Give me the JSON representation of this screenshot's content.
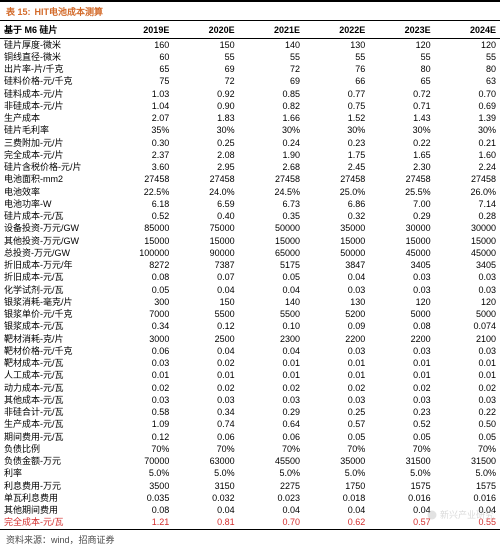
{
  "title_label": "表 15:",
  "title_text": "HIT电池成本测算",
  "header_first": "基于 M6 硅片",
  "years": [
    "2019E",
    "2020E",
    "2021E",
    "2022E",
    "2023E",
    "2024E"
  ],
  "rows": [
    {
      "label": "硅片厚度-微米",
      "cells": [
        "160",
        "150",
        "140",
        "130",
        "120",
        "120"
      ]
    },
    {
      "label": "铜线直径-微米",
      "cells": [
        "60",
        "55",
        "55",
        "55",
        "55",
        "55"
      ]
    },
    {
      "label": "出片率-片/千克",
      "cells": [
        "65",
        "69",
        "72",
        "76",
        "80",
        "80"
      ]
    },
    {
      "label": "硅料价格-元/千克",
      "cells": [
        "75",
        "72",
        "69",
        "66",
        "65",
        "63"
      ]
    },
    {
      "label": "硅料成本-元/片",
      "cells": [
        "1.03",
        "0.92",
        "0.85",
        "0.77",
        "0.72",
        "0.70"
      ]
    },
    {
      "label": "非硅成本-元/片",
      "cells": [
        "1.04",
        "0.90",
        "0.82",
        "0.75",
        "0.71",
        "0.69"
      ]
    },
    {
      "label": "生产成本",
      "cells": [
        "2.07",
        "1.83",
        "1.66",
        "1.52",
        "1.43",
        "1.39"
      ]
    },
    {
      "label": "硅片毛利率",
      "cells": [
        "35%",
        "30%",
        "30%",
        "30%",
        "30%",
        "30%"
      ]
    },
    {
      "label": "三费附加-元/片",
      "cells": [
        "0.30",
        "0.25",
        "0.24",
        "0.23",
        "0.22",
        "0.21"
      ]
    },
    {
      "label": "完全成本-元/片",
      "cells": [
        "2.37",
        "2.08",
        "1.90",
        "1.75",
        "1.65",
        "1.60"
      ]
    },
    {
      "label": "硅片含税价格-元/片",
      "cells": [
        "3.60",
        "2.95",
        "2.68",
        "2.45",
        "2.30",
        "2.24"
      ]
    },
    {
      "label": "电池面积-mm2",
      "cells": [
        "27458",
        "27458",
        "27458",
        "27458",
        "27458",
        "27458"
      ]
    },
    {
      "label": "电池效率",
      "cells": [
        "22.5%",
        "24.0%",
        "24.5%",
        "25.0%",
        "25.5%",
        "26.0%"
      ]
    },
    {
      "label": "电池功率-W",
      "cells": [
        "6.18",
        "6.59",
        "6.73",
        "6.86",
        "7.00",
        "7.14"
      ]
    },
    {
      "label": "硅片成本-元/瓦",
      "cells": [
        "0.52",
        "0.40",
        "0.35",
        "0.32",
        "0.29",
        "0.28"
      ]
    },
    {
      "label": "设备投资-万元/GW",
      "cells": [
        "85000",
        "75000",
        "50000",
        "35000",
        "30000",
        "30000"
      ]
    },
    {
      "label": "其他投资-万元/GW",
      "cells": [
        "15000",
        "15000",
        "15000",
        "15000",
        "15000",
        "15000"
      ]
    },
    {
      "label": "总投资-万元/GW",
      "cells": [
        "100000",
        "90000",
        "65000",
        "50000",
        "45000",
        "45000"
      ]
    },
    {
      "label": "折旧成本-万元/年",
      "cells": [
        "8272",
        "7387",
        "5175",
        "3847",
        "3405",
        "3405"
      ]
    },
    {
      "label": "折旧成本-元/瓦",
      "cells": [
        "0.08",
        "0.07",
        "0.05",
        "0.04",
        "0.03",
        "0.03"
      ]
    },
    {
      "label": "化学试剂-元/瓦",
      "cells": [
        "0.05",
        "0.04",
        "0.04",
        "0.03",
        "0.03",
        "0.03"
      ]
    },
    {
      "label": "银浆消耗-毫克/片",
      "cells": [
        "300",
        "150",
        "140",
        "130",
        "120",
        "120"
      ]
    },
    {
      "label": "银浆单价-元/千克",
      "cells": [
        "7000",
        "5500",
        "5500",
        "5200",
        "5000",
        "5000"
      ]
    },
    {
      "label": "银浆成本-元/瓦",
      "cells": [
        "0.34",
        "0.12",
        "0.10",
        "0.09",
        "0.08",
        "0.074"
      ]
    },
    {
      "label": "靶材消耗-克/片",
      "cells": [
        "3000",
        "2500",
        "2300",
        "2200",
        "2200",
        "2100"
      ]
    },
    {
      "label": "靶材价格-元/千克",
      "cells": [
        "0.06",
        "0.04",
        "0.04",
        "0.03",
        "0.03",
        "0.03"
      ]
    },
    {
      "label": "靶材成本-元/瓦",
      "cells": [
        "0.03",
        "0.02",
        "0.01",
        "0.01",
        "0.01",
        "0.01"
      ]
    },
    {
      "label": "人工成本-元/瓦",
      "cells": [
        "0.01",
        "0.01",
        "0.01",
        "0.01",
        "0.01",
        "0.01"
      ]
    },
    {
      "label": "动力成本-元/瓦",
      "cells": [
        "0.02",
        "0.02",
        "0.02",
        "0.02",
        "0.02",
        "0.02"
      ]
    },
    {
      "label": "其他成本-元/瓦",
      "cells": [
        "0.03",
        "0.03",
        "0.03",
        "0.03",
        "0.03",
        "0.03"
      ]
    },
    {
      "label": "非硅合计-元/瓦",
      "cells": [
        "0.58",
        "0.34",
        "0.29",
        "0.25",
        "0.23",
        "0.22"
      ]
    },
    {
      "label": "生产成本-元/瓦",
      "cells": [
        "1.09",
        "0.74",
        "0.64",
        "0.57",
        "0.52",
        "0.50"
      ]
    },
    {
      "label": "期间费用-元/瓦",
      "cells": [
        "0.12",
        "0.06",
        "0.06",
        "0.05",
        "0.05",
        "0.05"
      ]
    },
    {
      "label": "负债比例",
      "cells": [
        "70%",
        "70%",
        "70%",
        "70%",
        "70%",
        "70%"
      ]
    },
    {
      "label": "负债金额-万元",
      "cells": [
        "70000",
        "63000",
        "45500",
        "35000",
        "31500",
        "31500"
      ]
    },
    {
      "label": "利率",
      "cells": [
        "5.0%",
        "5.0%",
        "5.0%",
        "5.0%",
        "5.0%",
        "5.0%"
      ]
    },
    {
      "label": "利息费用-万元",
      "cells": [
        "3500",
        "3150",
        "2275",
        "1750",
        "1575",
        "1575"
      ]
    },
    {
      "label": "单瓦利息费用",
      "cells": [
        "0.035",
        "0.032",
        "0.023",
        "0.018",
        "0.016",
        "0.016"
      ]
    },
    {
      "label": "其他期间费用",
      "cells": [
        "0.08",
        "0.04",
        "0.04",
        "0.04",
        "0.04",
        "0.04"
      ]
    },
    {
      "label": "完全成本-元/瓦",
      "cells": [
        "1.21",
        "0.81",
        "0.70",
        "0.62",
        "0.57",
        "0.55"
      ],
      "highlight": true
    }
  ],
  "source_text": "资料来源：wind，招商证券",
  "watermark_text": "新兴产业研究"
}
